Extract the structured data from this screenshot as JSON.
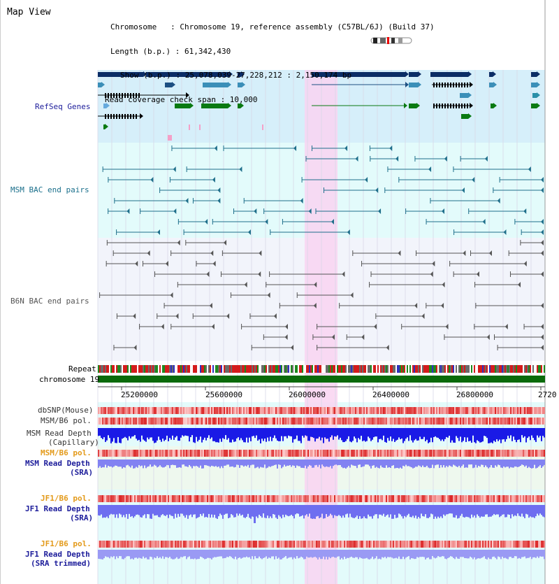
{
  "page": {
    "title": "Map View",
    "info_lines": [
      "Chromosome   : Chromosome 19, reference assembly (C57BL/6J) (Build 37)",
      "Length (b.p.) : 61,342,430",
      "Show (b.p.) : 25,078,039-27,228,212 : 2,150,174 bp",
      "Read coverage check span : 10,000"
    ]
  },
  "tracks": {
    "refseq": "RefSeq Genes",
    "msm_bac": "MSM BAC end pairs",
    "b6n_bac": "B6N BAC end pairs",
    "repeat": "Repeat",
    "chromosome": "chromosome 19",
    "dbsnp": "dbSNP(Mouse)",
    "msm_b6_pol_1": "MSM/B6 pol.",
    "msm_depth_cap": "MSM Read Depth",
    "msm_depth_cap_sub": "(Capillary)",
    "msm_b6_pol_2": "MSM/B6 pol.",
    "msm_depth_sra": "MSM Read Depth",
    "msm_depth_sra_sub": "(SRA)",
    "jf1_b6_pol_1": "JF1/B6 pol.",
    "jf1_depth_sra": "JF1 Read Depth",
    "jf1_depth_sra_sub": "(SRA)",
    "jf1_b6_pol_2": "JF1/B6 pol.",
    "jf1_depth_trim": "JF1 Read Depth",
    "jf1_depth_trim_sub": "(SRA trimmed)"
  },
  "axis": {
    "ticks": [
      "25200000",
      "25600000",
      "26000000",
      "26400000",
      "26800000",
      "2720"
    ]
  },
  "colors": {
    "gene_dark": "#0b2d66",
    "gene_mid": "#3b8fb8",
    "gene_green": "#0a7a12",
    "gene_black": "#000000",
    "msm_pair": "#1f6f8b",
    "b6n_pair": "#555555",
    "highlight": "#f9d4f1",
    "panel_blue": "#d6effa",
    "panel_cyan": "#e3fbfb",
    "panel_gray": "#f2f4fb",
    "snp_red": "#e83a3a",
    "depth_blue": "#1a1ae6",
    "depth_light": "#8282f2",
    "label_orange": "#e39a1a",
    "label_navy": "#1c1c9a",
    "label_teal": "#1a6f8b"
  }
}
